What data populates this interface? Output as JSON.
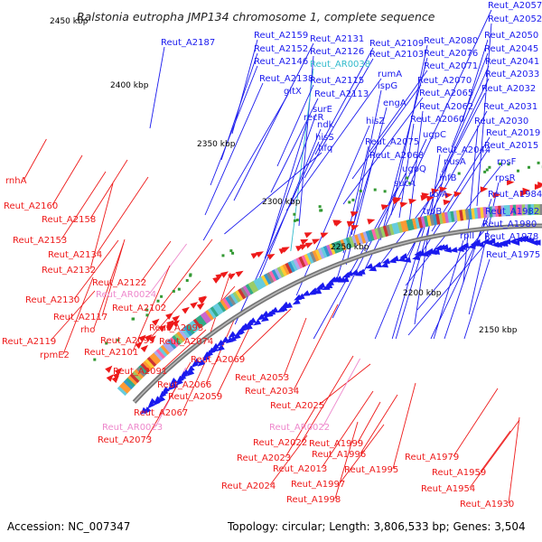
{
  "header": {
    "title": "Ralstonia eutropha JMP134 chromosome 1, complete sequence"
  },
  "footer": {
    "accession": "Accession: NC_007347",
    "summary": "Topology: circular; Length: 3,806,533 bp; Genes: 3,504"
  },
  "colors": {
    "forward": "#1a1aee",
    "reverse": "#ee1a1a",
    "rna": "#33bbcc",
    "pseudo": "#ee88cc",
    "backbone": "#777777"
  },
  "ticks": [
    "2450 kbp",
    "2400 kbp",
    "2350 kbp",
    "2300 kbp",
    "2250 kbp",
    "2200 kbp",
    "2150 kbp"
  ],
  "forward_labels": [
    "Reut_A2187",
    "Reut_A2159",
    "Reut_A2152",
    "Reut_A2146",
    "Reut_A2138",
    "gltX",
    "Reut_A2131",
    "Reut_A2126",
    "Reut_AR0038",
    "Reut_A2115",
    "Reut_A2113",
    "Reut_A2109",
    "Reut_A2103",
    "rumA",
    "ispG",
    "engA",
    "Reut_A2080",
    "Reut_A2076",
    "Reut_A2071",
    "Reut_A2070",
    "Reut_A2065",
    "Reut_A2062",
    "recR",
    "surE",
    "ndk",
    "hisZ",
    "hisS",
    "hfq",
    "Reut_A2060",
    "Reut_A2075",
    "Reut_A2068",
    "ugpC",
    "ugpQ",
    "sucA",
    "Reut_A2057",
    "Reut_A2052",
    "Reut_A2050",
    "Reut_A2045",
    "Reut_A2041",
    "Reut_A2033",
    "Reut_A2032",
    "Reut_A2031",
    "Reut_A2030",
    "Reut_A2044",
    "nusA",
    "infB",
    "Reut_A2019",
    "Reut_A2015",
    "rpsF",
    "rpsR",
    "rbfA",
    "truB",
    "Reut_A1984",
    "Reut_A1982",
    "Reut_A1980",
    "Reut_A1978",
    "rplI",
    "Reut_A1975"
  ],
  "reverse_labels": [
    "rnhA",
    "Reut_A2160",
    "Reut_A2158",
    "Reut_A2153",
    "Reut_A2134",
    "Reut_A2132",
    "Reut_A2122",
    "Reut_AR0024",
    "Reut_A2130",
    "Reut_A2102",
    "Reut_A2117",
    "rho",
    "Reut_A2093",
    "Reut_A2119",
    "Reut_A2099",
    "Reut_A2074",
    "rpmE2",
    "Reut_A2101",
    "Reut_A2091",
    "Reut_A2069",
    "Reut_A2053",
    "Reut_A2066",
    "Reut_A2059",
    "Reut_A2034",
    "Reut_A2025",
    "Reut_A2067",
    "Reut_AR0023",
    "Reut_AR0022",
    "Reut_A2073",
    "Reut_A2022",
    "Reut_A1999",
    "Reut_A2023",
    "Reut_A1996",
    "Reut_A1979",
    "Reut_A2013",
    "Reut_A1995",
    "Reut_A1959",
    "Reut_A2024",
    "Reut_A1997",
    "Reut_A1954",
    "Reut_A1998",
    "Reut_A1930"
  ],
  "pseudo_labels": [
    "Reut_AR0024",
    "Reut_AR0023",
    "Reut_AR0022"
  ],
  "rna_labels": [
    "Reut_AR0038"
  ]
}
